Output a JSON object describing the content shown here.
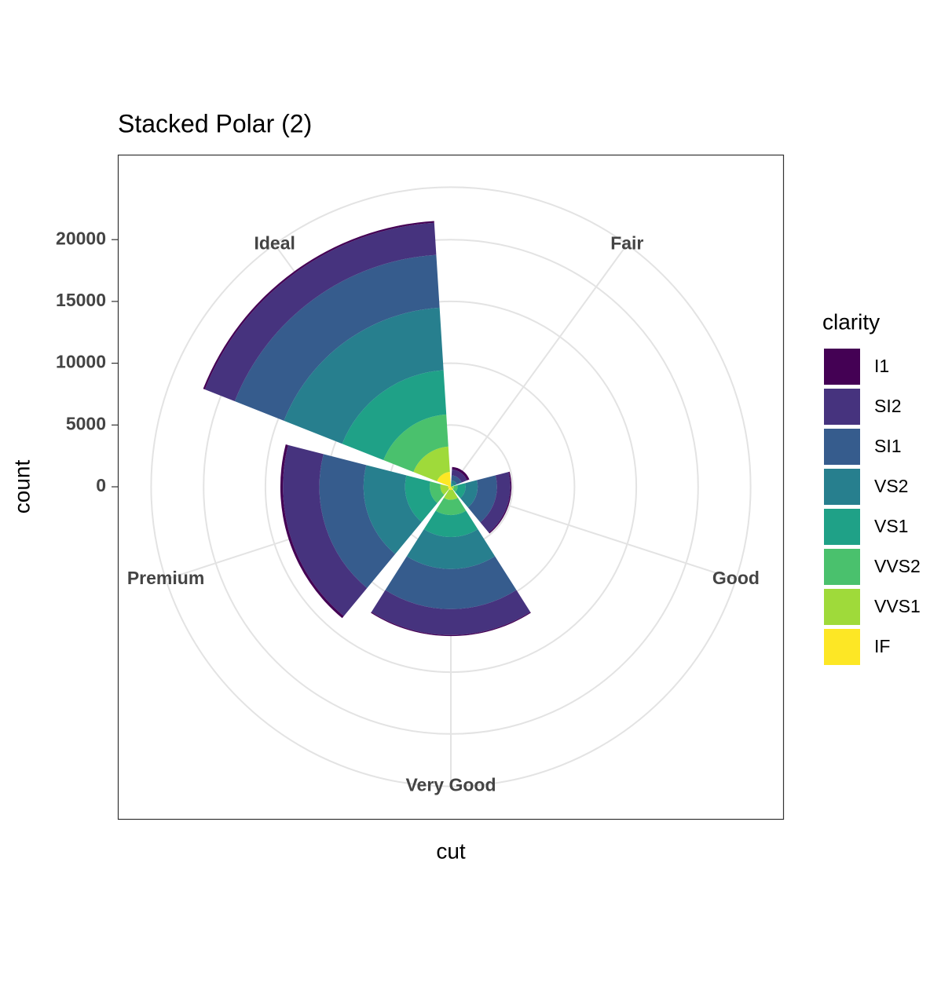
{
  "chart_data": {
    "type": "polar_stacked_bar",
    "title": "Stacked Polar (2)",
    "x_label": "cut",
    "y_label": "count",
    "legend_title": "clarity",
    "categories": [
      "Fair",
      "Good",
      "Very Good",
      "Premium",
      "Ideal"
    ],
    "series": [
      {
        "name": "I1",
        "color": "#440154",
        "values": [
          210,
          96,
          84,
          205,
          146
        ]
      },
      {
        "name": "SI2",
        "color": "#46337E",
        "values": [
          466,
          1081,
          2100,
          2949,
          2598
        ]
      },
      {
        "name": "SI1",
        "color": "#365C8D",
        "values": [
          408,
          1560,
          3240,
          3575,
          4282
        ]
      },
      {
        "name": "VS2",
        "color": "#277F8E",
        "values": [
          261,
          978,
          2591,
          3357,
          5071
        ]
      },
      {
        "name": "VS1",
        "color": "#1FA187",
        "values": [
          170,
          648,
          1775,
          1989,
          3589
        ]
      },
      {
        "name": "VVS2",
        "color": "#4AC16D",
        "values": [
          69,
          286,
          1235,
          870,
          2606
        ]
      },
      {
        "name": "VVS1",
        "color": "#9FDA3A",
        "values": [
          17,
          186,
          789,
          616,
          2047
        ]
      },
      {
        "name": "IF",
        "color": "#FDE725",
        "values": [
          9,
          71,
          268,
          230,
          1212
        ]
      }
    ],
    "ylim": [
      0,
      24245
    ],
    "yticks": [
      0,
      5000,
      10000,
      15000,
      20000
    ],
    "grid": true
  }
}
